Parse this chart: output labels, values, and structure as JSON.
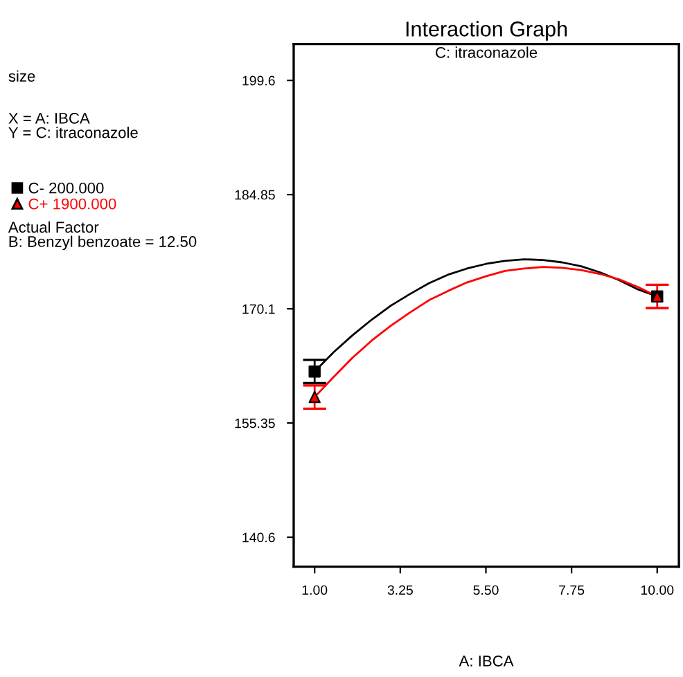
{
  "chart_data": {
    "type": "line",
    "title": "Interaction Graph",
    "subtitle": "C: itraconazole",
    "xlabel": "A: IBCA",
    "annotations": [
      "size",
      "X = A: IBCA\nY = C: itraconazole",
      "Actual Factor\nB: Benzyl benzoate = 12.50"
    ],
    "xlim": [
      0.45,
      10.57
    ],
    "ylim": [
      136.8,
      204.3
    ],
    "xticks": [
      {
        "value": 1,
        "label": "1.00"
      },
      {
        "value": 3.25,
        "label": "3.25"
      },
      {
        "value": 5.5,
        "label": "5.50"
      },
      {
        "value": 7.75,
        "label": "7.75"
      },
      {
        "value": 10,
        "label": "10.00"
      }
    ],
    "yticks": [
      140.6,
      155.35,
      170.1,
      184.85,
      199.6
    ],
    "grid": false,
    "legend": "left",
    "series": [
      {
        "color": "#000000",
        "marker": "none",
        "x": [
          1,
          1.5,
          2,
          2.5,
          3,
          3.5,
          4,
          4.5,
          5,
          5.5,
          6,
          6.5,
          7,
          7.5,
          8,
          8.5,
          9,
          9.5,
          10
        ],
        "values": [
          162.0,
          164.5,
          166.7,
          168.7,
          170.5,
          172.0,
          173.4,
          174.5,
          175.3,
          175.9,
          176.3,
          176.5,
          176.4,
          176.1,
          175.6,
          174.8,
          173.8,
          172.6,
          171.7
        ]
      },
      {
        "color": "#ff0000",
        "marker": "none",
        "x": [
          1,
          1.5,
          2,
          2.5,
          3,
          3.5,
          4,
          4.5,
          5,
          5.5,
          6,
          6.5,
          7,
          7.5,
          8,
          8.5,
          9,
          9.5,
          10
        ],
        "values": [
          158.7,
          161.3,
          163.8,
          166.0,
          167.9,
          169.6,
          171.2,
          172.4,
          173.5,
          174.3,
          175.0,
          175.3,
          175.5,
          175.4,
          175.1,
          174.6,
          173.9,
          172.9,
          171.7
        ]
      },
      {
        "type": "scatter",
        "name": "C- 200.000",
        "color": "#000000",
        "marker": "square",
        "x": [
          1,
          10
        ],
        "values": [
          162.0,
          171.7
        ],
        "errors": [
          1.5,
          null
        ]
      },
      {
        "type": "scatter",
        "name": "C+ 1900.000",
        "color": "#ff0000",
        "marker": "triangle",
        "x": [
          1,
          10
        ],
        "values": [
          158.7,
          171.7
        ],
        "errors": [
          1.5,
          1.5
        ]
      }
    ]
  }
}
